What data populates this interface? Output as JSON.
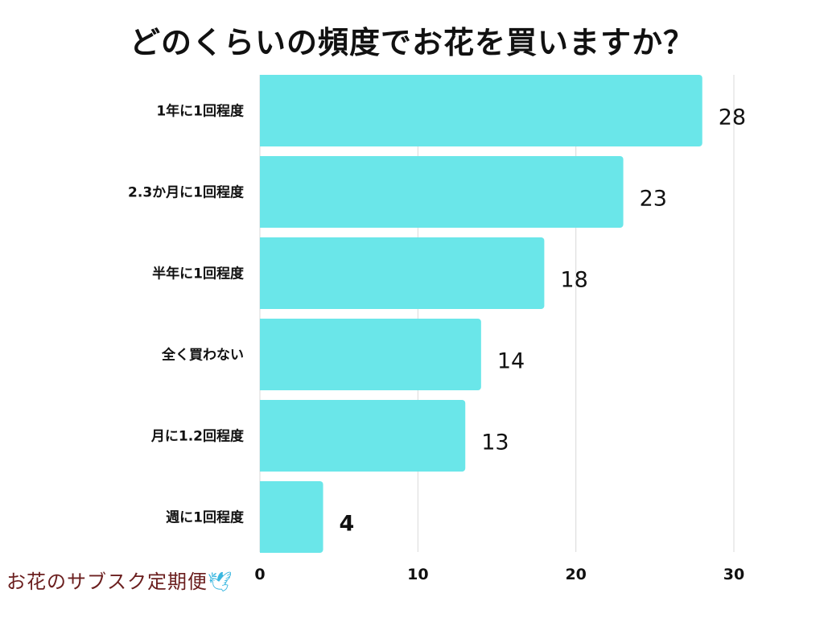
{
  "chart_data": {
    "type": "bar",
    "orientation": "horizontal",
    "title": "どのくらいの頻度でお花を買いますか？",
    "categories": [
      "1年に1回程度",
      "2.3か月に1回程度",
      "半年に1回程度",
      "全く買わない",
      "月に1.2回程度",
      "週に1回程度"
    ],
    "values": [
      28,
      23,
      18,
      14,
      13,
      4
    ],
    "xlim": [
      0,
      30
    ],
    "xticks": [
      0,
      10,
      20,
      30
    ],
    "grid": true,
    "bar_color": "#6ae6e9",
    "gridline_color": "#d9d9d9"
  },
  "logo": {
    "text": "お花のサブスク定期便"
  }
}
